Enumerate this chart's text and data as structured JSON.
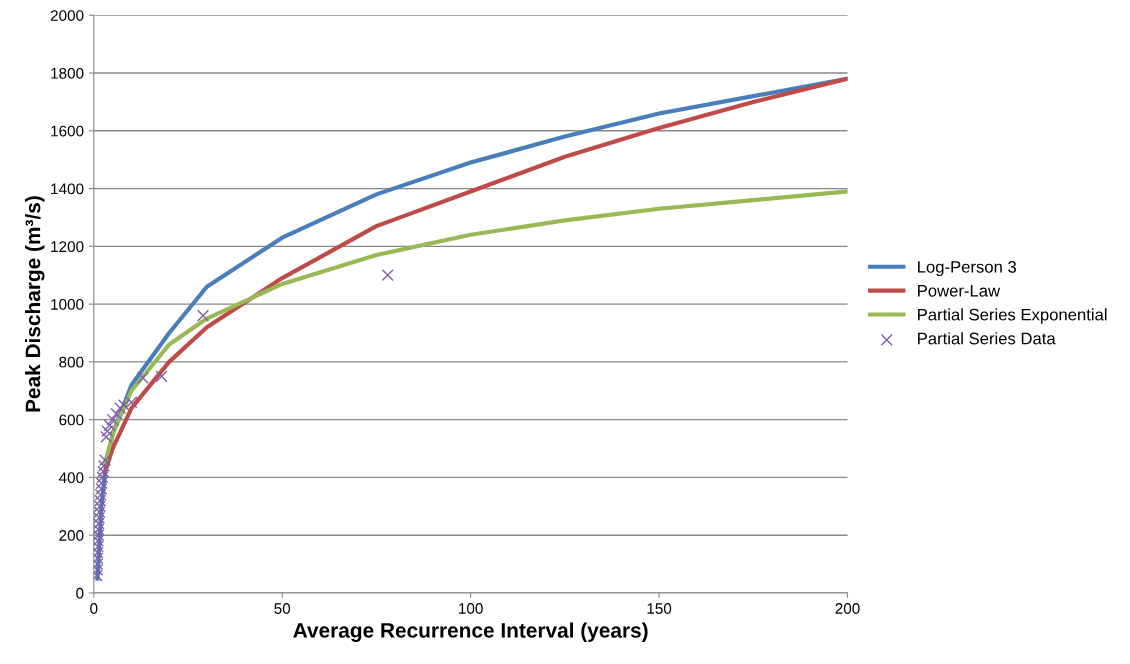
{
  "chart_data": {
    "type": "line",
    "xlabel": "Average Recurrence Interval (years)",
    "ylabel": "Peak Discharge (m³/s)",
    "xlim": [
      0,
      200
    ],
    "xticks": [
      0,
      50,
      100,
      150,
      200
    ],
    "ylim": [
      0,
      2000
    ],
    "yticks": [
      0,
      200,
      400,
      600,
      800,
      1000,
      1200,
      1400,
      1600,
      1800,
      2000
    ],
    "grid": "y",
    "legend": "right",
    "marker": "none",
    "line_style": "solid",
    "series": [
      {
        "name": "Log-Person 3",
        "color": "#4a7ebb",
        "x": [
          1,
          2,
          3,
          5,
          10,
          20,
          30,
          50,
          75,
          100,
          125,
          150,
          175,
          200
        ],
        "values": [
          50,
          300,
          420,
          550,
          720,
          900,
          1060,
          1230,
          1380,
          1490,
          1580,
          1660,
          1720,
          1780
        ]
      },
      {
        "name": "Power-Law",
        "color": "#be4b48",
        "x": [
          3,
          5,
          10,
          20,
          30,
          50,
          75,
          100,
          125,
          150,
          175,
          200
        ],
        "values": [
          420,
          500,
          640,
          800,
          920,
          1090,
          1270,
          1390,
          1510,
          1610,
          1700,
          1780
        ]
      },
      {
        "name": "Partial Series Exponential",
        "color": "#98b954",
        "x": [
          3,
          5,
          10,
          20,
          30,
          50,
          75,
          100,
          125,
          150,
          175,
          200
        ],
        "values": [
          450,
          550,
          700,
          860,
          950,
          1070,
          1170,
          1240,
          1290,
          1330,
          1360,
          1390
        ]
      },
      {
        "name": "Partial Series Data",
        "type": "scatter",
        "marker": "cross",
        "color": "#7f5fa8",
        "x": [
          0.8,
          0.9,
          0.9,
          1.0,
          1.0,
          1.1,
          1.1,
          1.2,
          1.2,
          1.3,
          1.4,
          1.5,
          1.6,
          1.7,
          1.8,
          2.0,
          2.1,
          2.3,
          2.5,
          2.7,
          3.0,
          3.3,
          3.6,
          4.2,
          5,
          6,
          7,
          8,
          10,
          13,
          18,
          29,
          78
        ],
        "values": [
          60,
          80,
          100,
          120,
          140,
          160,
          180,
          200,
          220,
          240,
          260,
          280,
          300,
          320,
          340,
          360,
          380,
          400,
          420,
          440,
          460,
          540,
          560,
          580,
          600,
          620,
          640,
          650,
          660,
          745,
          750,
          960,
          1100
        ]
      }
    ]
  }
}
